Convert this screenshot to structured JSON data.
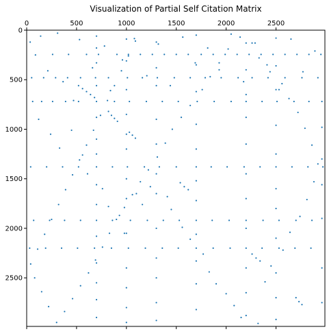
{
  "chart_data": {
    "type": "scatter",
    "subtype": "sparsity-matrix",
    "title": "Visualization of Partial Self Citation Matrix",
    "xlabel": "",
    "ylabel": "",
    "xlim": [
      0,
      2990
    ],
    "ylim": [
      2990,
      0
    ],
    "x_axis_position": "top",
    "y_axis_inverted": true,
    "x_ticks": [
      0,
      500,
      1000,
      1500,
      2000,
      2500
    ],
    "y_ticks": [
      0,
      500,
      1000,
      1500,
      2000,
      2500
    ],
    "x_tick_labels": [
      "0",
      "500",
      "1000",
      "1500",
      "2000",
      "2500"
    ],
    "y_tick_labels": [
      "0",
      "500",
      "1000",
      "1500",
      "2000",
      "2500"
    ],
    "grid": false,
    "legend": "none",
    "marker_color": "#1f77b4",
    "dense_rows": [
      240,
      480,
      720,
      1380,
      1920,
      2200
    ],
    "dense_columns": [
      700,
      1000,
      1300,
      1700,
      2200,
      2500
    ],
    "points": [
      [
        35,
        120
      ],
      [
        88,
        250
      ],
      [
        140,
        60
      ],
      [
        212,
        410
      ],
      [
        260,
        245
      ],
      [
        310,
        30
      ],
      [
        365,
        520
      ],
      [
        420,
        245
      ],
      [
        470,
        710
      ],
      [
        530,
        95
      ],
      [
        600,
        245
      ],
      [
        660,
        380
      ],
      [
        720,
        245
      ],
      [
        780,
        160
      ],
      [
        840,
        610
      ],
      [
        905,
        245
      ],
      [
        960,
        300
      ],
      [
        1020,
        245
      ],
      [
        1080,
        85
      ],
      [
        1140,
        245
      ],
      [
        1205,
        460
      ],
      [
        1260,
        245
      ],
      [
        1320,
        140
      ],
      [
        1380,
        245
      ],
      [
        1440,
        560
      ],
      [
        1500,
        245
      ],
      [
        1565,
        70
      ],
      [
        1620,
        245
      ],
      [
        1690,
        330
      ],
      [
        1750,
        245
      ],
      [
        1815,
        180
      ],
      [
        1870,
        245
      ],
      [
        1930,
        400
      ],
      [
        1990,
        245
      ],
      [
        2050,
        40
      ],
      [
        2110,
        245
      ],
      [
        2175,
        520
      ],
      [
        2230,
        245
      ],
      [
        2290,
        130
      ],
      [
        2350,
        245
      ],
      [
        2410,
        350
      ],
      [
        2470,
        245
      ],
      [
        2530,
        600
      ],
      [
        2590,
        245
      ],
      [
        2650,
        90
      ],
      [
        2710,
        245
      ],
      [
        2770,
        420
      ],
      [
        2830,
        245
      ],
      [
        2890,
        210
      ],
      [
        2950,
        245
      ],
      [
        50,
        480
      ],
      [
        170,
        480
      ],
      [
        290,
        480
      ],
      [
        410,
        480
      ],
      [
        540,
        480
      ],
      [
        690,
        480
      ],
      [
        820,
        480
      ],
      [
        1010,
        480
      ],
      [
        1160,
        480
      ],
      [
        1310,
        480
      ],
      [
        1480,
        480
      ],
      [
        1640,
        480
      ],
      [
        1790,
        480
      ],
      [
        1950,
        480
      ],
      [
        2120,
        480
      ],
      [
        2260,
        480
      ],
      [
        2420,
        480
      ],
      [
        2590,
        480
      ],
      [
        2760,
        480
      ],
      [
        2920,
        480
      ],
      [
        60,
        720
      ],
      [
        150,
        720
      ],
      [
        260,
        720
      ],
      [
        390,
        720
      ],
      [
        520,
        720
      ],
      [
        700,
        720
      ],
      [
        880,
        720
      ],
      [
        1030,
        720
      ],
      [
        1200,
        720
      ],
      [
        1360,
        720
      ],
      [
        1520,
        720
      ],
      [
        1710,
        720
      ],
      [
        1880,
        720
      ],
      [
        2050,
        720
      ],
      [
        2200,
        720
      ],
      [
        2360,
        720
      ],
      [
        2510,
        720
      ],
      [
        2680,
        720
      ],
      [
        2830,
        720
      ],
      [
        2960,
        720
      ],
      [
        40,
        1380
      ],
      [
        200,
        1380
      ],
      [
        360,
        1380
      ],
      [
        520,
        1380
      ],
      [
        700,
        1380
      ],
      [
        860,
        1380
      ],
      [
        1010,
        1380
      ],
      [
        1180,
        1380
      ],
      [
        1330,
        1380
      ],
      [
        1500,
        1380
      ],
      [
        1700,
        1380
      ],
      [
        1850,
        1380
      ],
      [
        2010,
        1380
      ],
      [
        2180,
        1380
      ],
      [
        2340,
        1380
      ],
      [
        2500,
        1380
      ],
      [
        2660,
        1380
      ],
      [
        2820,
        1380
      ],
      [
        2970,
        1380
      ],
      [
        70,
        1920
      ],
      [
        230,
        1920
      ],
      [
        380,
        1920
      ],
      [
        540,
        1920
      ],
      [
        700,
        1920
      ],
      [
        860,
        1920
      ],
      [
        1040,
        1920
      ],
      [
        1210,
        1920
      ],
      [
        1370,
        1920
      ],
      [
        1530,
        1920
      ],
      [
        1700,
        1920
      ],
      [
        1860,
        1920
      ],
      [
        2030,
        1920
      ],
      [
        2200,
        1920
      ],
      [
        2370,
        1920
      ],
      [
        2530,
        1920
      ],
      [
        2700,
        1920
      ],
      [
        2860,
        1920
      ],
      [
        30,
        2200
      ],
      [
        190,
        2200
      ],
      [
        350,
        2200
      ],
      [
        510,
        2200
      ],
      [
        680,
        2200
      ],
      [
        850,
        2200
      ],
      [
        1020,
        2200
      ],
      [
        1190,
        2200
      ],
      [
        1360,
        2200
      ],
      [
        1520,
        2200
      ],
      [
        1700,
        2200
      ],
      [
        1870,
        2200
      ],
      [
        2040,
        2200
      ],
      [
        2200,
        2200
      ],
      [
        2360,
        2200
      ],
      [
        2530,
        2200
      ],
      [
        2690,
        2200
      ],
      [
        2850,
        2200
      ],
      [
        700,
        60
      ],
      [
        700,
        180
      ],
      [
        700,
        330
      ],
      [
        700,
        560
      ],
      [
        700,
        880
      ],
      [
        700,
        1100
      ],
      [
        700,
        1250
      ],
      [
        700,
        1560
      ],
      [
        700,
        1760
      ],
      [
        700,
        2080
      ],
      [
        700,
        2350
      ],
      [
        700,
        2550
      ],
      [
        700,
        2720
      ],
      [
        700,
        2900
      ],
      [
        1000,
        90
      ],
      [
        1000,
        310
      ],
      [
        1000,
        600
      ],
      [
        1000,
        850
      ],
      [
        1000,
        1050
      ],
      [
        1000,
        1200
      ],
      [
        1000,
        1500
      ],
      [
        1000,
        1700
      ],
      [
        1000,
        2050
      ],
      [
        1000,
        2400
      ],
      [
        1000,
        2600
      ],
      [
        1000,
        2800
      ],
      [
        1000,
        2950
      ],
      [
        1300,
        120
      ],
      [
        1300,
        380
      ],
      [
        1300,
        560
      ],
      [
        1300,
        900
      ],
      [
        1300,
        1150
      ],
      [
        1300,
        1450
      ],
      [
        1300,
        1650
      ],
      [
        1300,
        2000
      ],
      [
        1300,
        2300
      ],
      [
        1300,
        2500
      ],
      [
        1300,
        2750
      ],
      [
        1300,
        2930
      ],
      [
        1700,
        50
      ],
      [
        1700,
        350
      ],
      [
        1700,
        620
      ],
      [
        1700,
        950
      ],
      [
        1700,
        1200
      ],
      [
        1700,
        1520
      ],
      [
        1700,
        1720
      ],
      [
        1700,
        2060
      ],
      [
        1700,
        2330
      ],
      [
        1700,
        2560
      ],
      [
        1700,
        2820
      ],
      [
        2200,
        130
      ],
      [
        2200,
        400
      ],
      [
        2200,
        650
      ],
      [
        2200,
        880
      ],
      [
        2200,
        1150
      ],
      [
        2200,
        1450
      ],
      [
        2200,
        1700
      ],
      [
        2200,
        2000
      ],
      [
        2200,
        2400
      ],
      [
        2200,
        2650
      ],
      [
        2200,
        2880
      ],
      [
        2500,
        80
      ],
      [
        2500,
        360
      ],
      [
        2500,
        600
      ],
      [
        2500,
        960
      ],
      [
        2500,
        1250
      ],
      [
        2500,
        1600
      ],
      [
        2500,
        1800
      ],
      [
        2500,
        2100
      ],
      [
        2500,
        2450
      ],
      [
        2500,
        2700
      ],
      [
        2500,
        2920
      ],
      [
        520,
        560
      ],
      [
        560,
        590
      ],
      [
        600,
        620
      ],
      [
        640,
        650
      ],
      [
        680,
        680
      ],
      [
        820,
        820
      ],
      [
        850,
        860
      ],
      [
        880,
        890
      ],
      [
        910,
        920
      ],
      [
        1030,
        1030
      ],
      [
        1060,
        1060
      ],
      [
        1090,
        1090
      ],
      [
        1540,
        1540
      ],
      [
        1580,
        1580
      ],
      [
        1620,
        1610
      ],
      [
        2260,
        2260
      ],
      [
        2300,
        2300
      ],
      [
        2340,
        2330
      ],
      [
        2700,
        2700
      ],
      [
        2730,
        2740
      ],
      [
        2760,
        2770
      ],
      [
        2960,
        980
      ],
      [
        2960,
        1300
      ],
      [
        2960,
        1560
      ],
      [
        2960,
        1900
      ],
      [
        2960,
        2400
      ],
      [
        2960,
        2750
      ],
      [
        120,
        900
      ],
      [
        240,
        1050
      ],
      [
        330,
        1190
      ],
      [
        450,
        1010
      ],
      [
        560,
        1260
      ],
      [
        610,
        1450
      ],
      [
        760,
        1600
      ],
      [
        820,
        1780
      ],
      [
        930,
        1870
      ],
      [
        980,
        2050
      ],
      [
        1100,
        1650
      ],
      [
        1160,
        1760
      ],
      [
        1240,
        1580
      ],
      [
        1410,
        1680
      ],
      [
        1450,
        1810
      ],
      [
        1560,
        1990
      ],
      [
        1640,
        2110
      ],
      [
        1770,
        2260
      ],
      [
        1830,
        2440
      ],
      [
        1900,
        2560
      ],
      [
        2000,
        2660
      ],
      [
        2080,
        2780
      ],
      [
        2150,
        2900
      ],
      [
        2320,
        2960
      ],
      [
        2390,
        2540
      ],
      [
        2450,
        2380
      ],
      [
        2570,
        2220
      ],
      [
        2640,
        2040
      ],
      [
        2740,
        1880
      ],
      [
        2810,
        1710
      ],
      [
        2880,
        1530
      ],
      [
        2920,
        1350
      ],
      [
        2860,
        1160
      ],
      [
        2790,
        990
      ],
      [
        2720,
        830
      ],
      [
        2630,
        690
      ],
      [
        2560,
        540
      ],
      [
        2440,
        420
      ],
      [
        2330,
        280
      ],
      [
        2260,
        130
      ],
      [
        2140,
        70
      ],
      [
        2020,
        190
      ],
      [
        1930,
        330
      ],
      [
        1840,
        470
      ],
      [
        1760,
        600
      ],
      [
        1640,
        760
      ],
      [
        1550,
        880
      ],
      [
        1460,
        1000
      ],
      [
        1390,
        1140
      ],
      [
        1310,
        1280
      ],
      [
        1220,
        1410
      ],
      [
        1140,
        1530
      ],
      [
        1060,
        1660
      ],
      [
        980,
        1790
      ],
      [
        900,
        1910
      ],
      [
        830,
        2050
      ],
      [
        760,
        2190
      ],
      [
        690,
        2320
      ],
      [
        620,
        2450
      ],
      [
        540,
        2580
      ],
      [
        460,
        2710
      ],
      [
        380,
        2840
      ],
      [
        300,
        2950
      ],
      [
        220,
        2790
      ],
      [
        150,
        2640
      ],
      [
        80,
        2500
      ],
      [
        40,
        2360
      ],
      [
        110,
        2210
      ],
      [
        180,
        2060
      ],
      [
        250,
        1910
      ],
      [
        320,
        1760
      ],
      [
        390,
        1610
      ],
      [
        460,
        1460
      ],
      [
        530,
        1310
      ],
      [
        600,
        1160
      ],
      [
        670,
        1010
      ],
      [
        740,
        860
      ],
      [
        810,
        710
      ],
      [
        880,
        560
      ],
      [
        950,
        410
      ],
      [
        1020,
        260
      ],
      [
        1090,
        110
      ]
    ]
  }
}
